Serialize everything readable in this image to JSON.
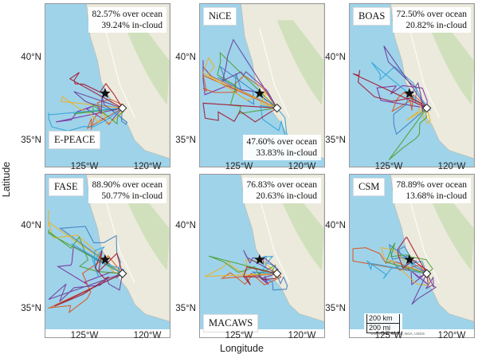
{
  "figure": {
    "y_axis_title": "Latitude",
    "x_axis_title": "Longitude",
    "x_ticks": [
      "125°W",
      "120°W"
    ],
    "y_ticks": [
      "40°N",
      "35°N"
    ],
    "colors": {
      "ocean": "#9fd3ea",
      "land": "#eceadd",
      "sierra": "#c9ddb4",
      "star": "#111111",
      "diamond": "#ffffff",
      "track_palette": [
        "#7b2c9c",
        "#d95319",
        "#3f7fbf",
        "#edb120",
        "#4aa02c",
        "#2ba3d9",
        "#a2142f",
        "#6a3d9a"
      ]
    }
  },
  "panels": [
    {
      "name": "E-PEACE",
      "ocean_stat": "82.57% over ocean",
      "cloud_stat": "39.24% in-cloud",
      "stat_position": "top",
      "name_position": "bottom-left",
      "show_x_ticks": false,
      "show_y_ticks": true
    },
    {
      "name": "NiCE",
      "ocean_stat": "47.60% over ocean",
      "cloud_stat": "33.83% in-cloud",
      "stat_position": "bottom",
      "name_position": "top-left",
      "show_x_ticks": false,
      "show_y_ticks": true
    },
    {
      "name": "BOAS",
      "ocean_stat": "72.50% over ocean",
      "cloud_stat": "20.82% in-cloud",
      "stat_position": "top",
      "name_position": "top-left",
      "show_x_ticks": false,
      "show_y_ticks": true
    },
    {
      "name": "FASE",
      "ocean_stat": "88.90% over ocean",
      "cloud_stat": "50.77% in-cloud",
      "stat_position": "top",
      "name_position": "top-left",
      "show_x_ticks": true,
      "show_y_ticks": true
    },
    {
      "name": "MACAWS",
      "ocean_stat": "76.83% over ocean",
      "cloud_stat": "20.63% in-cloud",
      "stat_position": "top",
      "name_position": "bottom-left",
      "show_x_ticks": true,
      "show_y_ticks": true
    },
    {
      "name": "CSM",
      "ocean_stat": "78.89% over ocean",
      "cloud_stat": "13.68% in-cloud",
      "stat_position": "top",
      "name_position": "top-left",
      "show_x_ticks": true,
      "show_y_ticks": true,
      "scale_km": "200 km",
      "scale_mi": "200 mi",
      "attribution": "Esri, HERE, Garmin, NGA, USGS"
    }
  ]
}
